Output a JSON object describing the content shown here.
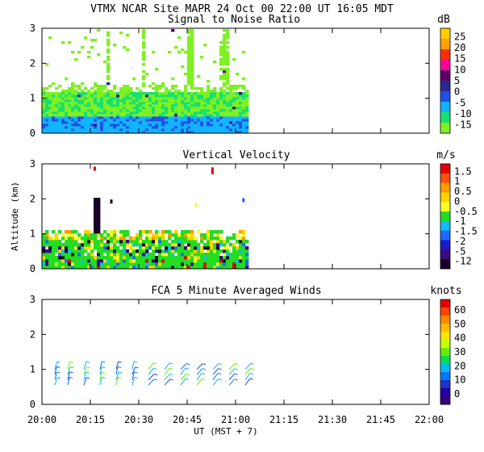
{
  "header": {
    "line": "VTMX   NCAR Site   MAPR 24 Oct 00   22:00 UT   16:05   MDT"
  },
  "time_axis": {
    "ticks": [
      "20:00",
      "20:15",
      "20:30",
      "20:45",
      "21:00",
      "21:15",
      "21:30",
      "21:45",
      "22:00"
    ],
    "label": "UT   (MST + 7)"
  },
  "shared_ylabel": "Altitude (km)",
  "chart_data": [
    {
      "type": "heatmap",
      "title": "Signal to Noise Ratio",
      "unit": "dB",
      "xlim": [
        "20:00",
        "22:00"
      ],
      "ylim": [
        0,
        3
      ],
      "y_ticks": [
        "0",
        "1",
        "2",
        "3"
      ],
      "data_extent": [
        "20:00",
        "21:04"
      ],
      "colorbar": {
        "labels": [
          "25",
          "20",
          "15",
          "10",
          "5",
          "0",
          "-5",
          "-10",
          "-15"
        ],
        "colors": [
          "#ffcc00",
          "#ffa000",
          "#ff3000",
          "#ff0099",
          "#5a0066",
          "#282890",
          "#2050e8",
          "#11b4ff",
          "#18e070",
          "#7ff022"
        ]
      }
    },
    {
      "type": "heatmap",
      "title": "Vertical Velocity",
      "unit": "m/s",
      "xlim": [
        "20:00",
        "22:00"
      ],
      "ylim": [
        0,
        3
      ],
      "y_ticks": [
        "0",
        "1",
        "2",
        "3"
      ],
      "data_extent": [
        "20:00",
        "21:04"
      ],
      "colorbar": {
        "labels": [
          "1.5",
          "1",
          "0.5",
          "0",
          "-0.5",
          "-1",
          "-1.5",
          "-2",
          "-5",
          "-12"
        ],
        "colors": [
          "#e60000",
          "#ff5010",
          "#ff9a00",
          "#ffd400",
          "#f8ff20",
          "#22dd22",
          "#11bbff",
          "#1a6cff",
          "#1b1bc8",
          "#3a0a80",
          "#1a0024"
        ]
      }
    },
    {
      "type": "scatter",
      "title": "FCA 5 Minute Averaged Winds",
      "unit": "knots",
      "xlim": [
        "20:00",
        "22:00"
      ],
      "ylim": [
        0,
        3
      ],
      "y_ticks": [
        "0",
        "1",
        "2",
        "3"
      ],
      "colorbar": {
        "labels": [
          "60",
          "50",
          "40",
          "30",
          "20",
          "10",
          "0"
        ],
        "colors": [
          "#e60000",
          "#ff4400",
          "#ff8800",
          "#ffbb00",
          "#ffe600",
          "#c8ff00",
          "#66ee00",
          "#00dd55",
          "#00bbee",
          "#0077ff",
          "#1a33cc",
          "#2200aa",
          "#33007a"
        ]
      },
      "barb_times": [
        "20:04",
        "20:08",
        "20:13",
        "20:18",
        "20:23",
        "20:28",
        "20:33",
        "20:38",
        "20:43",
        "20:48",
        "20:53",
        "20:58",
        "21:03"
      ],
      "barb_heights_km": [
        0.55,
        0.7,
        0.85,
        1.0
      ]
    }
  ]
}
